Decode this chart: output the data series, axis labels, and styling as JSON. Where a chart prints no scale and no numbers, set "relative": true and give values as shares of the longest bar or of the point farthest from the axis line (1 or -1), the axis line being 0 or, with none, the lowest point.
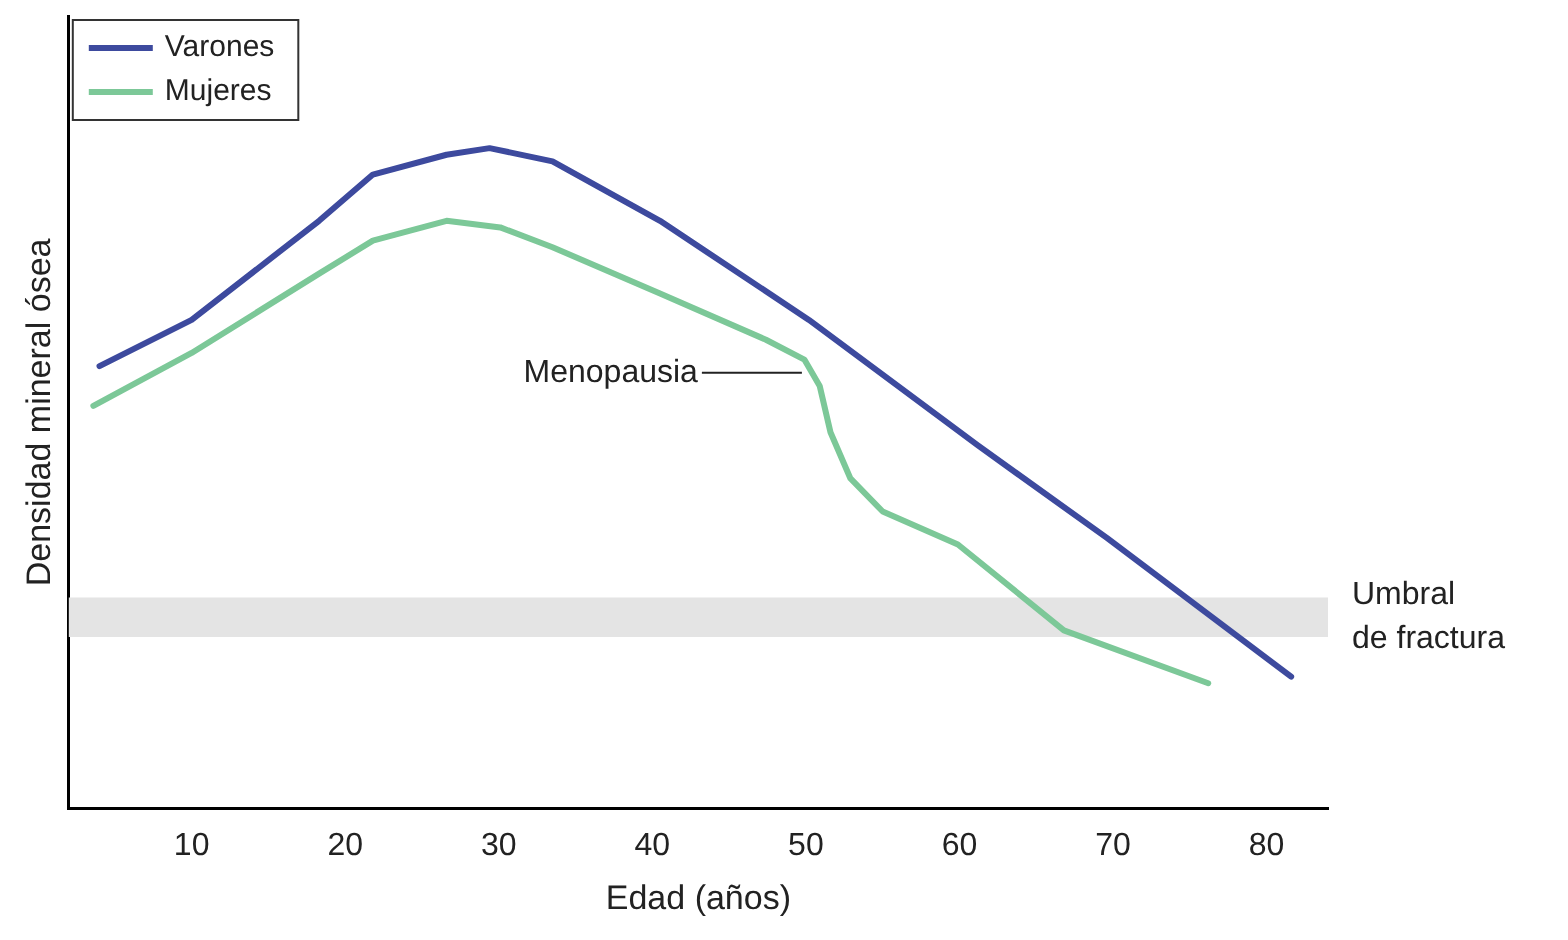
{
  "chart_data": {
    "type": "line",
    "xlabel": "Edad (años)",
    "ylabel": "Densidad mineral ósea",
    "relative": true,
    "xlim": [
      2,
      84
    ],
    "xticks": [
      10,
      20,
      30,
      40,
      50,
      60,
      70,
      80
    ],
    "grid": false,
    "legend": "top left",
    "marker": "none",
    "line_style": "solid",
    "series": [
      {
        "name": "Varones",
        "color": "#3d4a9e",
        "x": [
          4,
          10,
          18.3,
          21.8,
          26.6,
          29.4,
          33.5,
          40.5,
          50.2,
          61.2,
          69.6,
          81.6
        ],
        "values": [
          0.67,
          0.74,
          0.89,
          0.96,
          0.99,
          1,
          0.98,
          0.89,
          0.74,
          0.55,
          0.41,
          0.2
        ]
      },
      {
        "name": "Mujeres",
        "color": "#7cc898",
        "x": [
          3.6,
          10,
          18.3,
          21.8,
          26.6,
          30.1,
          33.5,
          40.5,
          47.4,
          49.9,
          50.9,
          51.6,
          52.9,
          55,
          59.9,
          66.8,
          76.2
        ],
        "values": [
          0.61,
          0.69,
          0.81,
          0.86,
          0.89,
          0.88,
          0.85,
          0.78,
          0.71,
          0.68,
          0.64,
          0.57,
          0.5,
          0.45,
          0.4,
          0.27,
          0.19
        ]
      }
    ],
    "bands": [
      {
        "axis": "y",
        "from": 0.26,
        "to": 0.32,
        "label": "Umbral de fractura",
        "color": "#e4e4e4"
      }
    ],
    "annotations": [
      {
        "text": "Menopausia",
        "x": 50,
        "y": 0.66
      }
    ]
  }
}
